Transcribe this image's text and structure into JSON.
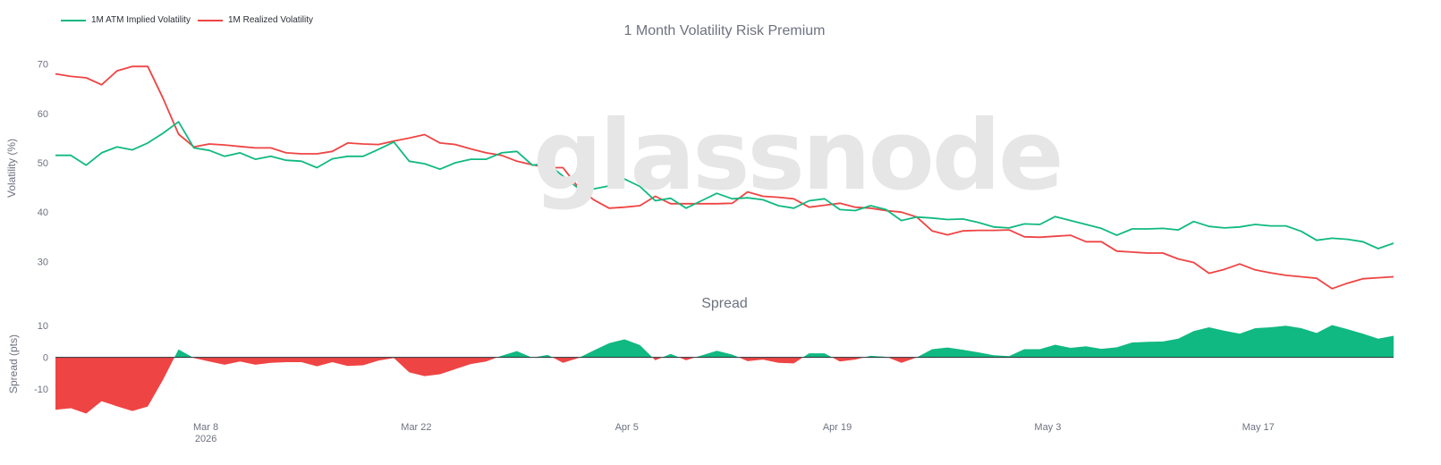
{
  "legend": {
    "implied_label": "1M ATM Implied Volatility",
    "realized_label": "1M Realized Volatility",
    "implied_color": "#10b981",
    "realized_color": "#ef4444"
  },
  "watermark": "glassnode",
  "chart_data": [
    {
      "type": "line",
      "title": "1 Month Volatility Risk Premium",
      "ylabel": "Volatility (%)",
      "ylim": [
        25,
        73
      ],
      "yticks": [
        30,
        40,
        50,
        60,
        70
      ],
      "x_start": "2026-02-26",
      "x_end": "2026-05-26",
      "xticks": [
        {
          "date": "2026-03-08",
          "label": "Mar 8",
          "sublabel": "2026"
        },
        {
          "date": "2026-03-22",
          "label": "Mar 22",
          "sublabel": ""
        },
        {
          "date": "2026-04-05",
          "label": "Apr 5",
          "sublabel": ""
        },
        {
          "date": "2026-04-19",
          "label": "Apr 19",
          "sublabel": ""
        },
        {
          "date": "2026-05-03",
          "label": "May 3",
          "sublabel": ""
        },
        {
          "date": "2026-05-17",
          "label": "May 17",
          "sublabel": ""
        }
      ],
      "series": [
        {
          "name": "1M ATM Implied Volatility",
          "color": "#10b981",
          "values": [
            51.5,
            51.5,
            49.5,
            52,
            53.2,
            52.6,
            54,
            56,
            58.3,
            53,
            52.5,
            51.3,
            52,
            50.7,
            51.3,
            50.5,
            50.3,
            49,
            50.8,
            51.3,
            51.3,
            52.7,
            54.2,
            50.3,
            49.8,
            48.7,
            50,
            50.7,
            50.7,
            52,
            52.3,
            49.5,
            49.8,
            47.3,
            44.8,
            44.7,
            45.3,
            46.7,
            45.2,
            42.3,
            42.8,
            40.8,
            42.3,
            43.8,
            42.7,
            42.9,
            42.5,
            41.3,
            40.8,
            42.3,
            42.7,
            40.5,
            40.3,
            41.3,
            40.5,
            38.3,
            39,
            38.8,
            38.5,
            38.6,
            37.9,
            37,
            36.8,
            37.6,
            37.5,
            39.1,
            38.3,
            37.5,
            36.7,
            35.3,
            36.6,
            36.6,
            36.7,
            36.4,
            38.1,
            37.1,
            36.8,
            37,
            37.5,
            37.2,
            37.2,
            36.1,
            34.3,
            34.7,
            34.5,
            34,
            32.6,
            33.7
          ]
        },
        {
          "name": "1M Realized Volatility",
          "color": "#ef4444",
          "values": [
            68,
            67.5,
            67.2,
            65.8,
            68.6,
            69.5,
            69.5,
            63,
            55.8,
            53.2,
            53.8,
            53.6,
            53.3,
            53,
            53,
            52,
            51.8,
            51.8,
            52.3,
            54,
            53.8,
            53.7,
            54.4,
            55,
            55.7,
            54,
            53.7,
            52.8,
            52,
            51.5,
            50.3,
            49.6,
            49,
            49,
            45,
            42.5,
            40.8,
            41,
            41.3,
            43.2,
            41.7,
            41.7,
            41.7,
            41.7,
            41.8,
            44.1,
            43.2,
            43,
            42.7,
            41,
            41.4,
            41.8,
            41,
            40.8,
            40.3,
            40,
            39,
            36.2,
            35.4,
            36.2,
            36.3,
            36.3,
            36.4,
            35,
            34.9,
            35.1,
            35.3,
            34,
            34,
            32.1,
            31.9,
            31.7,
            31.7,
            30.5,
            29.8,
            27.6,
            28.4,
            29.5,
            28.3,
            27.7,
            27.2,
            26.9,
            26.6,
            24.5,
            25.6,
            26.5,
            26.7,
            26.9
          ]
        }
      ]
    },
    {
      "type": "area",
      "title": "Spread",
      "ylabel": "Spread (pts)",
      "ylim": [
        -17,
        14
      ],
      "yticks": [
        -10,
        0,
        10
      ],
      "series": [
        {
          "name": "Spread",
          "positive_color": "#10b981",
          "negative_color": "#ef4444",
          "values": [
            -16.5,
            -16,
            -17.7,
            -13.8,
            -15.4,
            -16.9,
            -15.5,
            -7,
            2.5,
            -0.2,
            -1.3,
            -2.3,
            -1.3,
            -2.3,
            -1.7,
            -1.5,
            -1.5,
            -2.8,
            -1.5,
            -2.7,
            -2.5,
            -1,
            -0.2,
            -4.7,
            -5.9,
            -5.3,
            -3.7,
            -2.1,
            -1.3,
            0.5,
            2,
            -0.1,
            0.8,
            -1.7,
            -0.2,
            2.2,
            4.5,
            5.7,
            3.9,
            -0.9,
            1.1,
            -0.9,
            0.6,
            2.1,
            0.9,
            -1.2,
            -0.7,
            -1.7,
            -1.9,
            1.3,
            1.3,
            -1.3,
            -0.7,
            0.5,
            0.2,
            -1.7,
            0,
            2.6,
            3.1,
            2.4,
            1.6,
            0.7,
            0.4,
            2.6,
            2.6,
            4,
            3,
            3.5,
            2.7,
            3.2,
            4.7,
            4.9,
            5,
            5.9,
            8.3,
            9.5,
            8.4,
            7.5,
            9.2,
            9.5,
            10,
            9.2,
            7.7,
            10.2,
            8.9,
            7.5,
            5.9,
            6.8
          ]
        }
      ]
    }
  ]
}
